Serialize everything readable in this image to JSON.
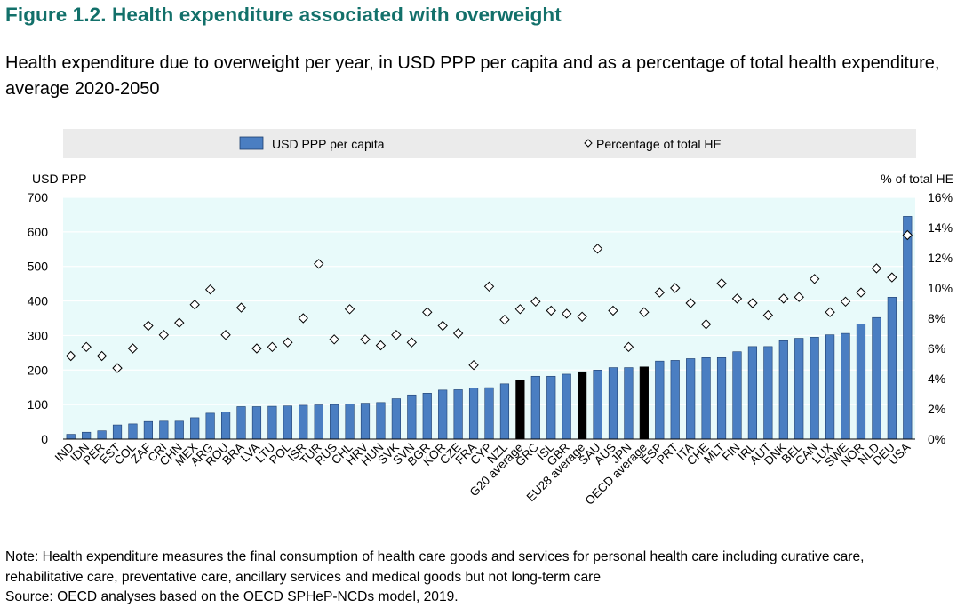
{
  "figure_title": "Figure 1.2. Health expenditure associated with overweight",
  "subtitle": "Health expenditure due to overweight per year, in USD PPP per capita and as a percentage of total health expenditure, average 2020-2050",
  "note_line1": "Note: Health expenditure measures the final consumption of health care goods and services for personal health care including curative care,",
  "note_line2": "rehabilitative care, preventative care, ancillary services and medical goods but not long-term care",
  "source": "Source: OECD analyses based on the OECD SPHeP-NCDs model, 2019.",
  "colors": {
    "bar": "#4a7ec2",
    "bar_highlight": "#000000",
    "plot_bg": "#e8fafa",
    "legend_bg": "#ebebeb",
    "title": "#12706a"
  },
  "chart_data": {
    "type": "bar",
    "legend": {
      "position": "top",
      "entries": [
        "USD PPP per capita",
        "Percentage of total HE"
      ]
    },
    "left_axis": {
      "label": "USD  PPP",
      "ylim": [
        0,
        700
      ],
      "ticks": [
        "0",
        "100",
        "200",
        "300",
        "400",
        "500",
        "600",
        "700"
      ]
    },
    "right_axis": {
      "label": "% of total HE",
      "ylim": [
        0,
        16
      ],
      "ticks": [
        "0%",
        "2%",
        "4%",
        "6%",
        "8%",
        "10%",
        "12%",
        "14%",
        "16%"
      ]
    },
    "categories": [
      "IND",
      "IDN",
      "PER",
      "EST",
      "COL",
      "ZAF",
      "CRI",
      "CHN",
      "MEX",
      "ARG",
      "ROU",
      "BRA",
      "LVA",
      "LTU",
      "POL",
      "ISR",
      "TUR",
      "RUS",
      "CHL",
      "HRV",
      "HUN",
      "SVK",
      "SVN",
      "BGR",
      "KOR",
      "CZE",
      "FRA",
      "CYP",
      "NZL",
      "G20 average",
      "GRC",
      "ISL",
      "GBR",
      "EU28 average",
      "SAU",
      "AUS",
      "JPN",
      "OECD average",
      "ESP",
      "PRT",
      "ITA",
      "CHE",
      "MLT",
      "FIN",
      "IRL",
      "AUT",
      "DNK",
      "BEL",
      "CAN",
      "LUX",
      "SWE",
      "NOR",
      "NLD",
      "DEU",
      "USA"
    ],
    "highlight": [
      "G20 average",
      "EU28 average",
      "OECD average"
    ],
    "series": [
      {
        "name": "USD PPP per capita",
        "kind": "bar",
        "axis": "left",
        "values": [
          14,
          20,
          24,
          41,
          44,
          51,
          52,
          52,
          62,
          75,
          79,
          94,
          94,
          95,
          96,
          98,
          99,
          100,
          102,
          104,
          106,
          117,
          128,
          133,
          142,
          143,
          148,
          149,
          160,
          170,
          182,
          182,
          188,
          195,
          200,
          207,
          207,
          209,
          226,
          228,
          233,
          236,
          236,
          253,
          268,
          268,
          285,
          292,
          295,
          302,
          306,
          333,
          352,
          411,
          645
        ]
      },
      {
        "name": "Percentage of total HE",
        "kind": "marker",
        "axis": "right",
        "values": [
          5.5,
          6.1,
          5.5,
          4.7,
          6.0,
          7.5,
          6.9,
          7.7,
          8.9,
          9.9,
          6.9,
          8.7,
          6.0,
          6.1,
          6.4,
          8.0,
          11.6,
          6.6,
          8.6,
          6.6,
          6.2,
          6.9,
          6.4,
          8.4,
          7.5,
          7.0,
          4.9,
          10.1,
          7.9,
          8.6,
          9.1,
          8.5,
          8.3,
          8.1,
          12.6,
          8.5,
          6.1,
          8.4,
          9.7,
          10.0,
          9.0,
          7.6,
          10.3,
          9.3,
          9.0,
          8.2,
          9.3,
          9.4,
          10.6,
          8.4,
          9.1,
          9.7,
          11.3,
          10.7,
          13.5
        ]
      }
    ]
  }
}
